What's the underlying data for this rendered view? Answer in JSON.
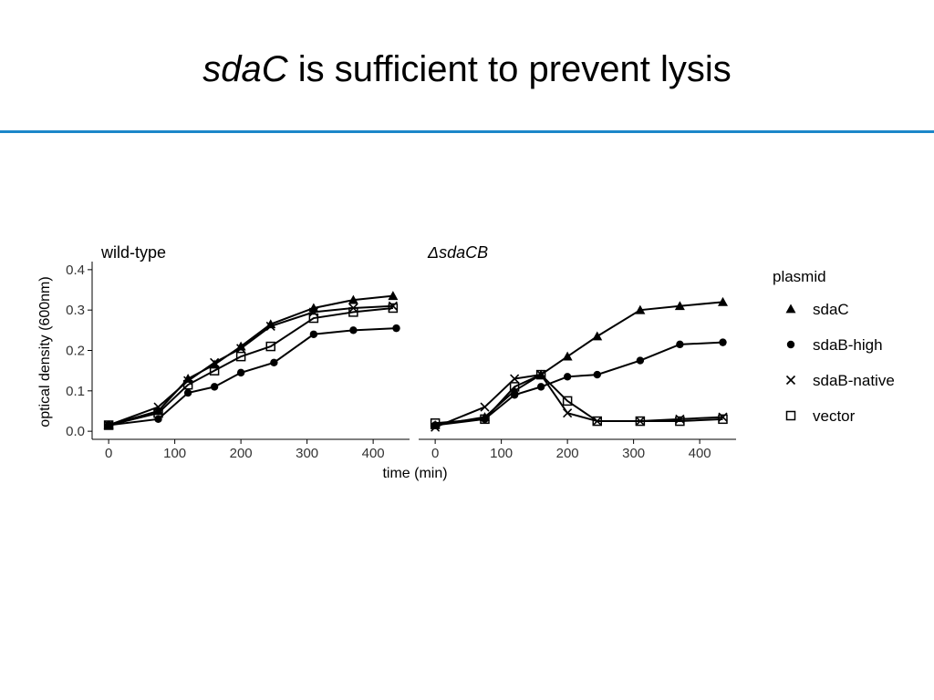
{
  "slide": {
    "title_italic": "sdaC",
    "title_rest": " is sufficient to prevent lysis",
    "accent_color": "#1b87c9"
  },
  "chart_data": {
    "type": "line",
    "ylabel": "optical density (600nm)",
    "xlabel": "time (min)",
    "xlim": [
      -25,
      455
    ],
    "ylim": [
      -0.02,
      0.42
    ],
    "x_ticks": [
      0,
      100,
      200,
      300,
      400
    ],
    "y_ticks": [
      0.0,
      0.1,
      0.2,
      0.3,
      0.4
    ],
    "x_tick_labels": [
      "0",
      "100",
      "200",
      "300",
      "400"
    ],
    "y_tick_labels": [
      "0.0",
      "0.1",
      "0.2",
      "0.3",
      "0.4"
    ],
    "grid": false,
    "legend": {
      "title": "plasmid",
      "position": "right",
      "entries": [
        {
          "name": "sdaC",
          "marker": "filled-triangle"
        },
        {
          "name": "sdaB-high",
          "marker": "filled-circle"
        },
        {
          "name": "sdaB-native",
          "marker": "cross"
        },
        {
          "name": "vector",
          "marker": "open-square"
        }
      ]
    },
    "panels": [
      {
        "title": "wild-type",
        "title_italic": false,
        "series": [
          {
            "name": "sdaC",
            "x": [
              0,
              75,
              120,
              160,
              200,
              245,
              310,
              370,
              430
            ],
            "y": [
              0.015,
              0.05,
              0.13,
              0.165,
              0.21,
              0.265,
              0.305,
              0.325,
              0.335
            ]
          },
          {
            "name": "sdaB-high",
            "x": [
              0,
              75,
              120,
              160,
              200,
              250,
              310,
              370,
              435
            ],
            "y": [
              0.015,
              0.03,
              0.095,
              0.11,
              0.145,
              0.17,
              0.24,
              0.25,
              0.255
            ]
          },
          {
            "name": "sdaB-native",
            "x": [
              0,
              75,
              120,
              160,
              200,
              245,
              310,
              370,
              430
            ],
            "y": [
              0.015,
              0.06,
              0.125,
              0.17,
              0.205,
              0.26,
              0.295,
              0.305,
              0.31
            ]
          },
          {
            "name": "vector",
            "x": [
              0,
              75,
              120,
              160,
              200,
              245,
              310,
              370,
              430
            ],
            "y": [
              0.015,
              0.045,
              0.115,
              0.15,
              0.185,
              0.21,
              0.28,
              0.295,
              0.305
            ]
          }
        ]
      },
      {
        "title": "ΔsdaCB",
        "title_italic": true,
        "series": [
          {
            "name": "sdaC",
            "x": [
              0,
              75,
              120,
              160,
              200,
              245,
              310,
              370,
              435
            ],
            "y": [
              0.015,
              0.035,
              0.1,
              0.14,
              0.185,
              0.235,
              0.3,
              0.31,
              0.32
            ]
          },
          {
            "name": "sdaB-high",
            "x": [
              0,
              75,
              120,
              160,
              200,
              245,
              310,
              370,
              435
            ],
            "y": [
              0.015,
              0.03,
              0.09,
              0.11,
              0.135,
              0.14,
              0.175,
              0.215,
              0.22
            ]
          },
          {
            "name": "sdaB-native",
            "x": [
              0,
              75,
              120,
              160,
              200,
              245,
              310,
              370,
              435
            ],
            "y": [
              0.01,
              0.06,
              0.13,
              0.14,
              0.045,
              0.025,
              0.025,
              0.03,
              0.035
            ]
          },
          {
            "name": "vector",
            "x": [
              0,
              75,
              120,
              160,
              200,
              245,
              310,
              370,
              435
            ],
            "y": [
              0.02,
              0.03,
              0.11,
              0.14,
              0.075,
              0.025,
              0.025,
              0.025,
              0.03
            ]
          }
        ]
      }
    ]
  }
}
